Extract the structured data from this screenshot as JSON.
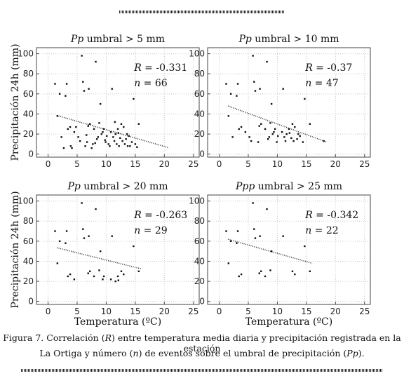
{
  "caption": {
    "line1_parts": [
      {
        "t": "Figura 7. Correlación (",
        "i": false
      },
      {
        "t": "R",
        "i": true
      },
      {
        "t": ") entre temperatura media diaria y precipitación registrada en la estación",
        "i": false
      }
    ],
    "line2_parts": [
      {
        "t": "La Ortiga  y número (",
        "i": false
      },
      {
        "t": "n",
        "i": true
      },
      {
        "t": ") de eventos sobre el umbral de precipitación (",
        "i": false
      },
      {
        "t": "Pp",
        "i": true
      },
      {
        "t": ").",
        "i": false
      }
    ]
  },
  "chart_data": [
    {
      "type": "scatter",
      "title_italic": "Pp",
      "title_rest": " umbral > 5 mm",
      "xlabel": "",
      "ylabel": "Precipitación 24h (mm)",
      "xlim": [
        -2,
        26
      ],
      "ylim": [
        -3,
        106
      ],
      "xticks": [
        0,
        5,
        10,
        15,
        20,
        25
      ],
      "yticks": [
        0,
        20,
        40,
        60,
        80,
        100
      ],
      "r_label": "R",
      "r_value": "= -0.331",
      "n_label": "n",
      "n_value": "= 66",
      "trend": {
        "x": [
          1.5,
          20.7
        ],
        "y": [
          38.5,
          6.5
        ]
      },
      "points": [
        [
          1.2,
          70
        ],
        [
          1.6,
          38
        ],
        [
          2,
          60
        ],
        [
          2.3,
          17
        ],
        [
          2.7,
          6
        ],
        [
          3,
          58
        ],
        [
          3.2,
          70
        ],
        [
          3.4,
          25
        ],
        [
          3.8,
          27
        ],
        [
          3.9,
          8
        ],
        [
          4.1,
          6
        ],
        [
          4.5,
          22
        ],
        [
          5.2,
          17
        ],
        [
          5.5,
          13
        ],
        [
          5.8,
          98
        ],
        [
          6,
          72
        ],
        [
          6.2,
          63
        ],
        [
          6.4,
          8
        ],
        [
          6.7,
          12
        ],
        [
          6.9,
          28
        ],
        [
          7,
          65
        ],
        [
          7.2,
          30
        ],
        [
          7.5,
          6
        ],
        [
          7.7,
          10
        ],
        [
          7.9,
          25
        ],
        [
          8.2,
          92
        ],
        [
          8.4,
          15
        ],
        [
          8.6,
          17
        ],
        [
          8.8,
          31
        ],
        [
          9,
          50
        ],
        [
          9.2,
          20
        ],
        [
          9.4,
          22
        ],
        [
          9.6,
          25
        ],
        [
          9.9,
          12
        ],
        [
          10.1,
          18
        ],
        [
          10.4,
          10
        ],
        [
          10.6,
          8
        ],
        [
          10.8,
          22
        ],
        [
          11,
          65
        ],
        [
          11.2,
          17
        ],
        [
          11.4,
          13
        ],
        [
          11.6,
          20
        ],
        [
          11.8,
          10
        ],
        [
          12,
          25
        ],
        [
          12.2,
          8
        ],
        [
          12.4,
          16
        ],
        [
          12.6,
          30
        ],
        [
          12.8,
          13
        ],
        [
          13,
          27
        ],
        [
          13.2,
          10
        ],
        [
          13.4,
          15
        ],
        [
          13.6,
          20
        ],
        [
          13.9,
          18
        ],
        [
          14.1,
          8
        ],
        [
          14.4,
          12
        ],
        [
          14.7,
          55
        ],
        [
          15,
          10
        ],
        [
          15.3,
          7
        ],
        [
          15.6,
          30
        ],
        [
          12.1,
          21
        ],
        [
          9.8,
          14
        ],
        [
          6.6,
          19
        ],
        [
          4.8,
          27
        ],
        [
          11.5,
          32
        ],
        [
          13.7,
          8
        ],
        [
          8.1,
          11
        ]
      ]
    },
    {
      "type": "scatter",
      "title_italic": "Pp",
      "title_rest": " umbral > 10 mm",
      "xlabel": "",
      "ylabel": "",
      "xlim": [
        -2,
        26
      ],
      "ylim": [
        -3,
        106
      ],
      "xticks": [
        0,
        5,
        10,
        15,
        20,
        25
      ],
      "yticks": [
        0,
        20,
        40,
        60,
        80,
        100
      ],
      "r_label": "R",
      "r_value": "= -0.37",
      "n_label": "n",
      "n_value": "= 47",
      "trend": {
        "x": [
          1.5,
          18.5
        ],
        "y": [
          48,
          12
        ]
      },
      "points": [
        [
          1.2,
          70
        ],
        [
          1.6,
          38
        ],
        [
          2,
          60
        ],
        [
          2.3,
          17
        ],
        [
          3,
          58
        ],
        [
          3.2,
          70
        ],
        [
          3.4,
          25
        ],
        [
          3.8,
          27
        ],
        [
          4.5,
          22
        ],
        [
          5.2,
          17
        ],
        [
          5.5,
          13
        ],
        [
          5.8,
          98
        ],
        [
          6,
          72
        ],
        [
          6.2,
          63
        ],
        [
          6.7,
          12
        ],
        [
          6.9,
          28
        ],
        [
          7,
          65
        ],
        [
          7.2,
          30
        ],
        [
          7.9,
          25
        ],
        [
          8.2,
          92
        ],
        [
          8.4,
          15
        ],
        [
          8.6,
          17
        ],
        [
          8.8,
          31
        ],
        [
          9,
          50
        ],
        [
          9.2,
          20
        ],
        [
          9.4,
          22
        ],
        [
          9.6,
          25
        ],
        [
          9.9,
          12
        ],
        [
          10.1,
          18
        ],
        [
          10.8,
          22
        ],
        [
          11,
          65
        ],
        [
          11.2,
          17
        ],
        [
          11.4,
          13
        ],
        [
          11.6,
          20
        ],
        [
          12,
          25
        ],
        [
          12.4,
          16
        ],
        [
          12.6,
          30
        ],
        [
          12.8,
          13
        ],
        [
          13,
          27
        ],
        [
          13.4,
          15
        ],
        [
          13.6,
          20
        ],
        [
          13.9,
          18
        ],
        [
          14.4,
          12
        ],
        [
          14.7,
          55
        ],
        [
          15.6,
          30
        ],
        [
          18,
          13
        ],
        [
          12.1,
          21
        ]
      ]
    },
    {
      "type": "scatter",
      "title_italic": "Pp",
      "title_rest": " umbral > 20 mm",
      "xlabel": "Temperatura (ºC)",
      "ylabel": "Precipitación 24h (mm)",
      "xlim": [
        -2,
        26
      ],
      "ylim": [
        -3,
        106
      ],
      "xticks": [
        0,
        5,
        10,
        15,
        20,
        25
      ],
      "yticks": [
        0,
        20,
        40,
        60,
        80,
        100
      ],
      "r_label": "R",
      "r_value": "= -0.263",
      "n_label": "n",
      "n_value": "= 29",
      "trend": {
        "x": [
          1.5,
          16
        ],
        "y": [
          53.5,
          32.5
        ]
      },
      "points": [
        [
          1.2,
          70
        ],
        [
          1.6,
          38
        ],
        [
          2,
          60
        ],
        [
          3,
          58
        ],
        [
          3.2,
          70
        ],
        [
          3.4,
          25
        ],
        [
          3.8,
          27
        ],
        [
          4.5,
          22
        ],
        [
          5.8,
          98
        ],
        [
          6,
          72
        ],
        [
          6.2,
          63
        ],
        [
          6.9,
          28
        ],
        [
          7,
          65
        ],
        [
          7.2,
          30
        ],
        [
          7.9,
          25
        ],
        [
          8.2,
          92
        ],
        [
          8.8,
          31
        ],
        [
          9,
          50
        ],
        [
          9.4,
          22
        ],
        [
          9.6,
          25
        ],
        [
          10.8,
          22
        ],
        [
          11,
          65
        ],
        [
          11.6,
          20
        ],
        [
          12,
          25
        ],
        [
          12.6,
          30
        ],
        [
          13,
          27
        ],
        [
          14.7,
          55
        ],
        [
          15.6,
          30
        ],
        [
          12.1,
          21
        ]
      ]
    },
    {
      "type": "scatter",
      "title_italic": "Ppp",
      "title_rest": " umbral > 25 mm",
      "xlabel": "Temperatura (ºC)",
      "ylabel": "",
      "xlim": [
        -2,
        26
      ],
      "ylim": [
        -3,
        106
      ],
      "xticks": [
        0,
        5,
        10,
        15,
        20,
        25
      ],
      "yticks": [
        0,
        20,
        40,
        60,
        80,
        100
      ],
      "r_label": "R",
      "r_value": "= -0.342",
      "n_label": "n",
      "n_value": "= 22",
      "trend": {
        "x": [
          1.5,
          16
        ],
        "y": [
          62,
          38
        ]
      },
      "points": [
        [
          1.2,
          70
        ],
        [
          1.6,
          38
        ],
        [
          2,
          60
        ],
        [
          3,
          58
        ],
        [
          3.2,
          70
        ],
        [
          3.4,
          25
        ],
        [
          3.8,
          27
        ],
        [
          5.8,
          98
        ],
        [
          6,
          72
        ],
        [
          6.2,
          63
        ],
        [
          6.9,
          28
        ],
        [
          7,
          65
        ],
        [
          7.2,
          30
        ],
        [
          7.9,
          25
        ],
        [
          8.2,
          92
        ],
        [
          8.8,
          31
        ],
        [
          9,
          50
        ],
        [
          11,
          65
        ],
        [
          12.6,
          30
        ],
        [
          13,
          27
        ],
        [
          14.7,
          55
        ],
        [
          15.6,
          30
        ]
      ]
    }
  ]
}
